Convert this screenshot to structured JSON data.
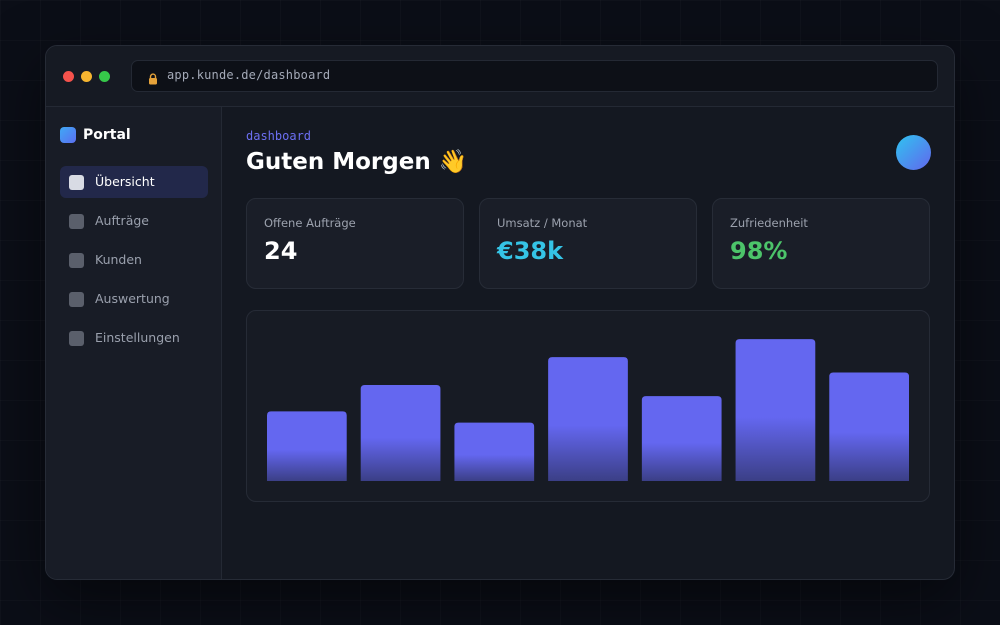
{
  "browser": {
    "url": "app.kunde.de/dashboard"
  },
  "sidebar": {
    "brand": "Portal",
    "items": [
      {
        "label": "Übersicht",
        "active": true
      },
      {
        "label": "Aufträge",
        "active": false
      },
      {
        "label": "Kunden",
        "active": false
      },
      {
        "label": "Auswertung",
        "active": false
      },
      {
        "label": "Einstellungen",
        "active": false
      }
    ]
  },
  "header": {
    "eyebrow": "dashboard",
    "title": "Guten Morgen 👋"
  },
  "stats": [
    {
      "label": "Offene Aufträge",
      "value": "24",
      "color": "#ffffff"
    },
    {
      "label": "Umsatz / Monat",
      "value": "€38k",
      "color": "#35c4e6"
    },
    {
      "label": "Zufriedenheit",
      "value": "98%",
      "color": "#4cc46a"
    }
  ],
  "colors": {
    "accent": "#6c6ff2",
    "bar_top": "#6467f0",
    "bar_bottom": "#3b3f86"
  },
  "chart_data": {
    "type": "bar",
    "values": [
      50,
      69,
      42,
      89,
      61,
      102,
      78
    ],
    "ylim": [
      0,
      115
    ],
    "title": "",
    "xlabel": "",
    "ylabel": ""
  }
}
